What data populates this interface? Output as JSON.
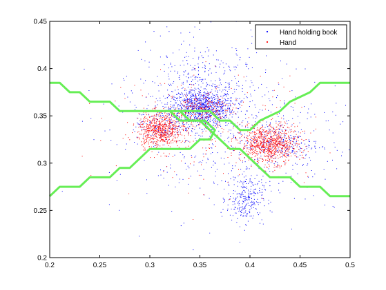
{
  "chart_data": {
    "type": "scatter",
    "xlim": [
      0.2,
      0.5
    ],
    "ylim": [
      0.2,
      0.45
    ],
    "xticks": [
      "0.2",
      "0.25",
      "0.3",
      "0.35",
      "0.4",
      "0.45",
      "0.5"
    ],
    "yticks": [
      "0.2",
      "0.25",
      "0.3",
      "0.35",
      "0.4",
      "0.45"
    ],
    "grid": false,
    "legend_position": "top-right",
    "series": [
      {
        "name": "Hand holding book",
        "color": "#0000ff",
        "marker": "point",
        "clusters": [
          {
            "center": [
              0.352,
              0.358
            ],
            "spread": [
              0.016,
              0.01
            ],
            "count": 900
          },
          {
            "center": [
              0.352,
              0.372
            ],
            "spread": [
              0.03,
              0.03
            ],
            "count": 450
          },
          {
            "center": [
              0.395,
              0.262
            ],
            "spread": [
              0.009,
              0.012
            ],
            "count": 250
          },
          {
            "center": [
              0.43,
              0.32
            ],
            "spread": [
              0.02,
              0.012
            ],
            "count": 250
          },
          {
            "center": [
              0.38,
              0.33
            ],
            "spread": [
              0.06,
              0.045
            ],
            "count": 450
          },
          {
            "center": [
              0.31,
              0.34
            ],
            "spread": [
              0.012,
              0.01
            ],
            "count": 120
          }
        ]
      },
      {
        "name": "Hand",
        "color": "#ff0000",
        "marker": "point",
        "clusters": [
          {
            "center": [
              0.31,
              0.335
            ],
            "spread": [
              0.011,
              0.009
            ],
            "count": 650
          },
          {
            "center": [
              0.42,
              0.32
            ],
            "spread": [
              0.014,
              0.01
            ],
            "count": 850
          },
          {
            "center": [
              0.35,
              0.355
            ],
            "spread": [
              0.015,
              0.009
            ],
            "count": 250
          },
          {
            "center": [
              0.36,
              0.34
            ],
            "spread": [
              0.05,
              0.03
            ],
            "count": 220
          }
        ]
      }
    ],
    "boundaries": [
      {
        "color": "#66ee55",
        "points": [
          [
            0.2,
            0.385
          ],
          [
            0.21,
            0.385
          ],
          [
            0.22,
            0.375
          ],
          [
            0.23,
            0.375
          ],
          [
            0.24,
            0.365
          ],
          [
            0.26,
            0.365
          ],
          [
            0.27,
            0.355
          ],
          [
            0.32,
            0.355
          ],
          [
            0.33,
            0.345
          ],
          [
            0.35,
            0.345
          ],
          [
            0.36,
            0.335
          ],
          [
            0.37,
            0.325
          ],
          [
            0.38,
            0.315
          ],
          [
            0.39,
            0.315
          ],
          [
            0.4,
            0.305
          ],
          [
            0.41,
            0.295
          ],
          [
            0.42,
            0.285
          ],
          [
            0.44,
            0.285
          ],
          [
            0.45,
            0.275
          ],
          [
            0.47,
            0.275
          ],
          [
            0.48,
            0.265
          ],
          [
            0.5,
            0.265
          ]
        ]
      },
      {
        "color": "#66ee55",
        "points": [
          [
            0.2,
            0.265
          ],
          [
            0.21,
            0.275
          ],
          [
            0.23,
            0.275
          ],
          [
            0.24,
            0.285
          ],
          [
            0.26,
            0.285
          ],
          [
            0.27,
            0.295
          ],
          [
            0.28,
            0.295
          ],
          [
            0.29,
            0.305
          ],
          [
            0.3,
            0.315
          ],
          [
            0.34,
            0.315
          ],
          [
            0.35,
            0.325
          ],
          [
            0.36,
            0.325
          ],
          [
            0.365,
            0.335
          ],
          [
            0.355,
            0.345
          ],
          [
            0.34,
            0.345
          ],
          [
            0.33,
            0.355
          ],
          [
            0.32,
            0.355
          ],
          [
            0.36,
            0.355
          ],
          [
            0.37,
            0.345
          ],
          [
            0.38,
            0.345
          ],
          [
            0.39,
            0.335
          ],
          [
            0.4,
            0.335
          ],
          [
            0.41,
            0.345
          ],
          [
            0.43,
            0.355
          ],
          [
            0.44,
            0.365
          ],
          [
            0.46,
            0.375
          ],
          [
            0.47,
            0.385
          ],
          [
            0.5,
            0.385
          ]
        ]
      }
    ]
  }
}
